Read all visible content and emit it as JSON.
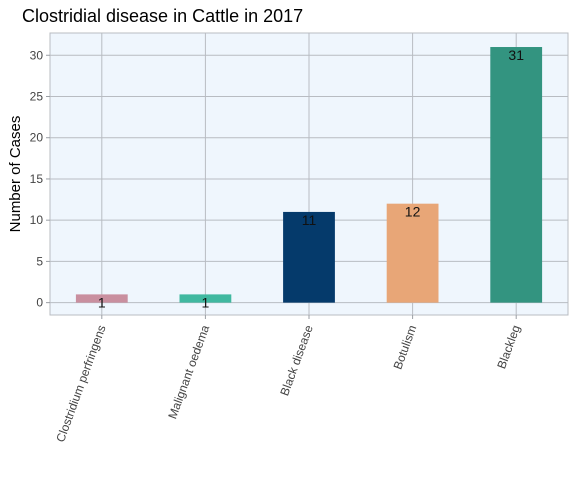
{
  "chart_data": {
    "type": "bar",
    "title": "Clostridial disease in Cattle in 2017",
    "xlabel": "",
    "ylabel": "Number of Cases",
    "categories": [
      "Clostridium perfringens",
      "Malignant oedema",
      "Black disease",
      "Botulism",
      "Blackleg"
    ],
    "values": [
      1,
      1,
      11,
      12,
      31
    ],
    "colors": [
      "#c98f9f",
      "#40b8a0",
      "#053a6b",
      "#e8a677",
      "#339480"
    ],
    "yticks": [
      0,
      5,
      10,
      15,
      20,
      25,
      30
    ],
    "ylim": [
      -1.5,
      32.7
    ],
    "grid": true,
    "legend": "none",
    "background": "#eff6fd"
  }
}
